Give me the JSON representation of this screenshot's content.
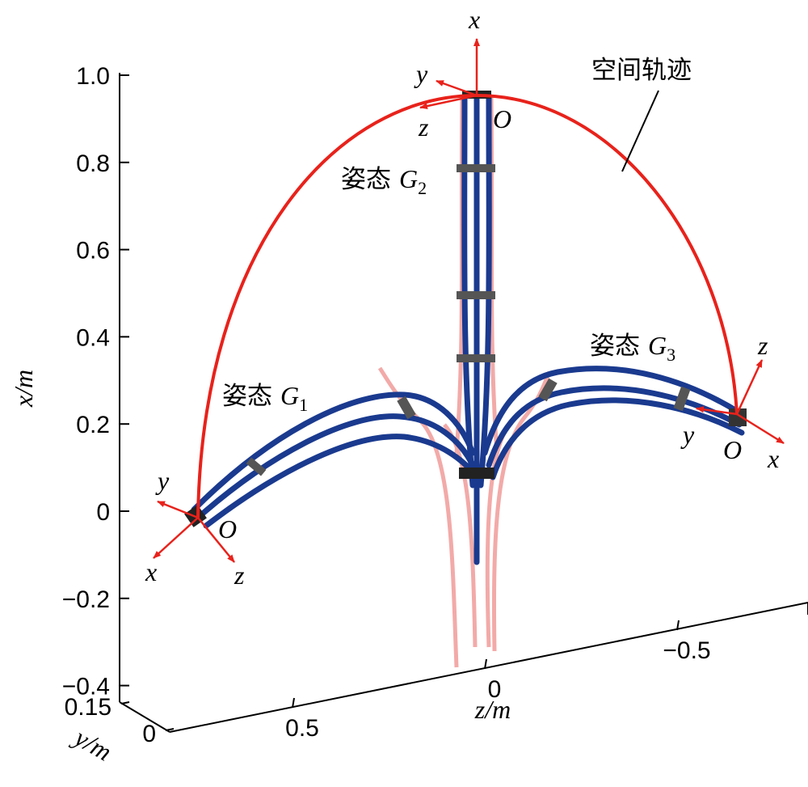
{
  "chart_data": {
    "type": "3d-trajectory",
    "xlabel": "x/m",
    "zlabel": "z/m",
    "ylabel": "y/m",
    "xlim": [
      -0.43,
      1.0
    ],
    "xticks": [
      {
        "value": 1,
        "label": "1.0"
      },
      0.8,
      0.6,
      0.4,
      0.2,
      0,
      {
        "value": -0.2,
        "label": "−0.2"
      },
      {
        "value": -0.4,
        "label": "−0.4"
      }
    ],
    "zlim": [
      0.82,
      -0.84
    ],
    "zticks": [
      0.5,
      0,
      {
        "value": -0.5,
        "label": "−0.5"
      }
    ],
    "ylim": [
      0.15,
      0
    ],
    "yticks": [
      0.15,
      0
    ],
    "trajectory_label": "空间轨迹",
    "poses": [
      {
        "label": "姿态",
        "symbol": "G",
        "subscript": "1"
      },
      {
        "label": "姿态",
        "symbol": "G",
        "subscript": "2"
      },
      {
        "label": "姿态",
        "symbol": "G",
        "subscript": "3"
      }
    ],
    "frames": [
      {
        "x": "x",
        "y": "y",
        "z": "z",
        "origin": "O"
      },
      {
        "x": "x",
        "y": "y",
        "z": "z",
        "origin": "O"
      },
      {
        "x": "x",
        "y": "y",
        "z": "z",
        "origin": "O"
      }
    ]
  }
}
